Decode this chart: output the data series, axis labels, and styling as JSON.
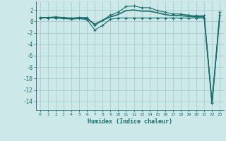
{
  "xlabel": "Humidex (Indice chaleur)",
  "background_color": "#cce8e8",
  "grid_color": "#aacccc",
  "line_color": "#1a6b6b",
  "xlim": [
    -0.5,
    23.5
  ],
  "ylim": [
    -15.5,
    3.5
  ],
  "yticks": [
    2,
    0,
    -2,
    -4,
    -6,
    -8,
    -10,
    -12,
    -14
  ],
  "xtick_labels": [
    "0",
    "1",
    "2",
    "3",
    "4",
    "5",
    "6",
    "7",
    "8",
    "9",
    "10",
    "11",
    "12",
    "13",
    "14",
    "15",
    "16",
    "17",
    "18",
    "19",
    "20",
    "21",
    "22",
    "23"
  ],
  "line1_x": [
    0,
    1,
    2,
    3,
    4,
    5,
    6,
    7,
    8,
    9,
    10,
    11,
    12,
    13,
    14,
    15,
    16,
    17,
    18,
    19,
    20,
    21,
    22,
    23
  ],
  "line1_y": [
    0.6,
    0.6,
    0.6,
    0.5,
    0.4,
    0.5,
    0.3,
    -1.5,
    -0.7,
    0.4,
    0.6,
    0.6,
    0.6,
    0.6,
    0.6,
    0.6,
    0.6,
    0.6,
    0.6,
    0.6,
    0.6,
    0.6,
    -14.3,
    1.0
  ],
  "line2_x": [
    0,
    1,
    2,
    3,
    4,
    5,
    6,
    7,
    8,
    9,
    10,
    11,
    12,
    13,
    14,
    15,
    16,
    17,
    18,
    19,
    20,
    21,
    22,
    23
  ],
  "line2_y": [
    0.7,
    0.7,
    0.8,
    0.7,
    0.6,
    0.7,
    0.7,
    -0.7,
    0.2,
    1.1,
    1.6,
    2.6,
    2.7,
    2.4,
    2.4,
    1.9,
    1.6,
    1.3,
    1.3,
    1.1,
    1.0,
    1.0,
    -14.3,
    1.6
  ],
  "line3_x": [
    0,
    1,
    2,
    3,
    4,
    5,
    6,
    7,
    8,
    9,
    10,
    11,
    12,
    13,
    14,
    15,
    16,
    17,
    18,
    19,
    20,
    21,
    22,
    23
  ],
  "line3_y": [
    0.65,
    0.65,
    0.7,
    0.6,
    0.5,
    0.6,
    0.5,
    -0.5,
    0.2,
    0.8,
    1.2,
    1.9,
    2.0,
    1.8,
    1.8,
    1.5,
    1.2,
    1.0,
    1.0,
    0.9,
    0.8,
    0.8,
    -14.3,
    1.3
  ],
  "line1_has_markers": true,
  "line2_has_markers": true,
  "line3_has_markers": false
}
